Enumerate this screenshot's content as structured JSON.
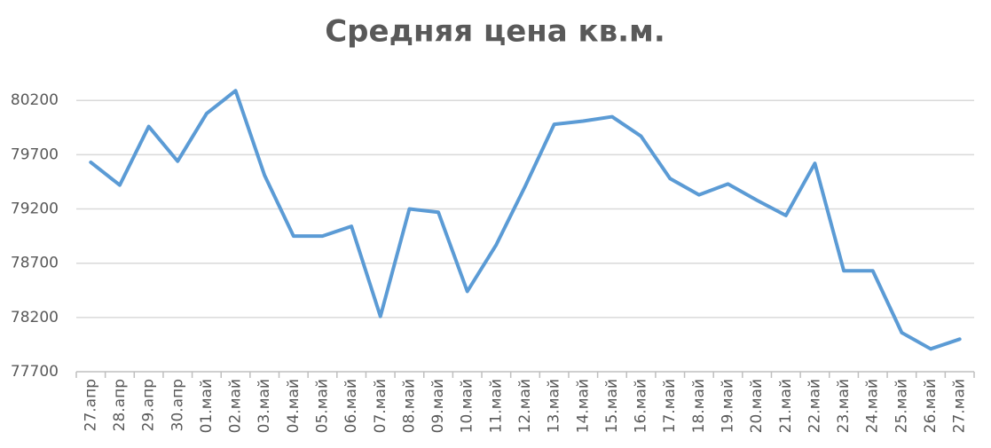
{
  "chart_data": {
    "type": "line",
    "title": "Средняя цена кв.м.",
    "categories": [
      "27.апр",
      "28.апр",
      "29.апр",
      "30.апр",
      "01.май",
      "02.май",
      "03.май",
      "04.май",
      "05.май",
      "06.май",
      "07.май",
      "08.май",
      "09.май",
      "10.май",
      "11.май",
      "12.май",
      "13.май",
      "14.май",
      "15.май",
      "16.май",
      "17.май",
      "18.май",
      "19.май",
      "20.май",
      "21.май",
      "22.май",
      "23.май",
      "24.май",
      "25.май",
      "26.май",
      "27.май"
    ],
    "series": [
      {
        "name": "Средняя цена кв.м.",
        "color": "#5b9bd5",
        "values": [
          79630,
          79420,
          79960,
          79640,
          80080,
          80290,
          79510,
          78950,
          78950,
          79040,
          78210,
          79200,
          79170,
          78440,
          78870,
          79410,
          79980,
          80010,
          80050,
          79870,
          79480,
          79330,
          79430,
          79280,
          79140,
          79620,
          78630,
          78630,
          78060,
          77910,
          78000
        ]
      }
    ],
    "ylim": [
      77700,
      80300
    ],
    "yticks": [
      77700,
      78200,
      78700,
      79200,
      79700,
      80200
    ],
    "grid": true
  }
}
